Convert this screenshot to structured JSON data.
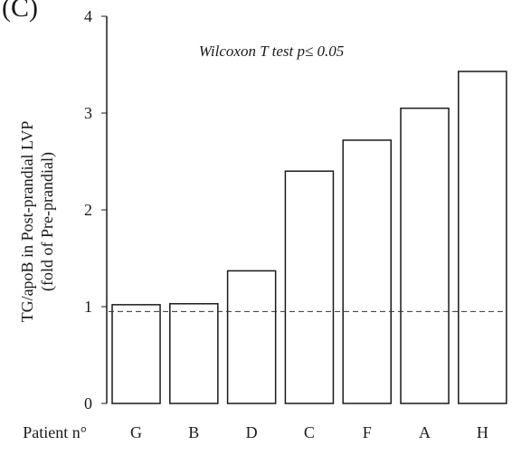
{
  "panel_label": "(C)",
  "chart_data": {
    "type": "bar",
    "categories": [
      "G",
      "B",
      "D",
      "C",
      "F",
      "A",
      "H"
    ],
    "values": [
      1.02,
      1.03,
      1.37,
      2.4,
      2.72,
      3.05,
      3.43
    ],
    "x_prefix": "Patient n°",
    "ylabel_lines": [
      "TG/apoB in Post-prandial LVP",
      "(fold of Pre-prandial)"
    ],
    "ylim": [
      0,
      4
    ],
    "yticks": [
      0,
      1,
      2,
      3,
      4
    ],
    "ytick_labels": [
      "0",
      "1",
      "2",
      "3",
      "4"
    ],
    "reference_line": 0.95,
    "annotation": "Wilcoxon T test p≤ 0.05",
    "grid": false,
    "colors": {
      "bar_fill": "#ffffff",
      "bar_stroke": "#1a1a1a"
    }
  }
}
